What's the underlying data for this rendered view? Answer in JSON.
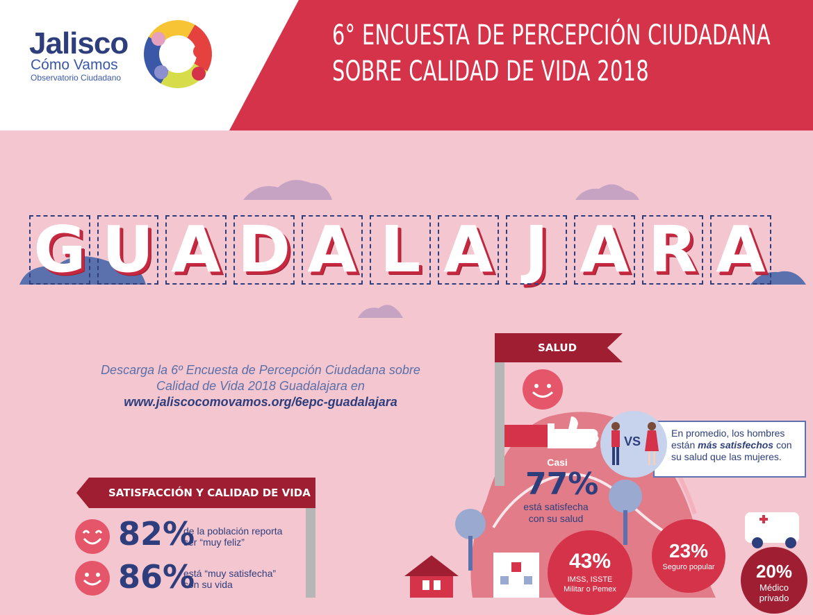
{
  "header": {
    "logo": {
      "name": "Jalisco",
      "sub1": "Cómo Vamos",
      "sub2": "Observatorio Ciudadano"
    },
    "title_line1": "6° ENCUESTA DE PERCEPCIÓN CIUDADANA",
    "title_line2": "SOBRE CALIDAD DE VIDA 2018",
    "colors": {
      "red": "#d4334a",
      "navy": "#2e3e7c",
      "pink": "#f4c6d0"
    }
  },
  "city": {
    "letters": [
      "G",
      "U",
      "A",
      "D",
      "A",
      "L",
      "A",
      "J",
      "A",
      "R",
      "A"
    ]
  },
  "download": {
    "line1": "Descarga la 6º Encuesta de Percepción Ciudadana sobre",
    "line2": "Calidad de Vida 2018 Guadalajara en",
    "url": "www.jaliscocomovamos.org/6epc-guadalajara"
  },
  "satisfaction": {
    "banner": "SATISFACCIÓN Y CALIDAD DE VIDA",
    "items": [
      {
        "value": "82%",
        "text1": "de la población reporta",
        "text2": "ser “muy feliz”"
      },
      {
        "value": "86%",
        "text1": "está “muy satisfecha”",
        "text2": "con su vida"
      }
    ]
  },
  "health": {
    "banner": "SALUD",
    "casi": "Casi",
    "value": "77%",
    "desc1": "está satisfecha",
    "desc2": "con su salud",
    "vs": "VS",
    "comparison": {
      "line1": "En promedio, los hombres",
      "line2_a": "están ",
      "line2_b": "más satisfechos",
      "line2_c": " con",
      "line3": "su salud que las mujeres."
    },
    "stats": [
      {
        "value": "43%",
        "label1": "IMSS, ISSTE",
        "label2": "Militar o Pemex"
      },
      {
        "value": "23%",
        "label1": "Seguro popular",
        "label2": ""
      },
      {
        "value": "20%",
        "label1": "Médico",
        "label2": "privado"
      }
    ]
  }
}
